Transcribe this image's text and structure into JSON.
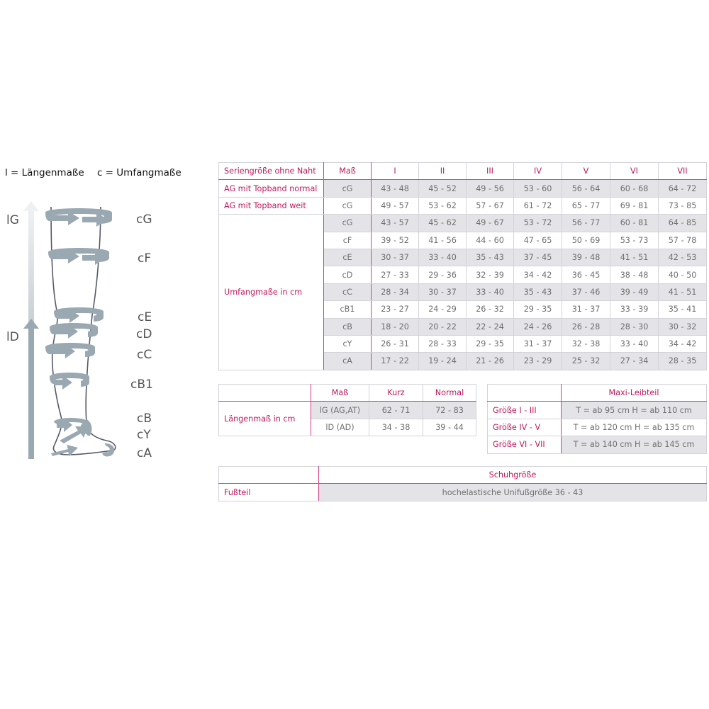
{
  "legend": {
    "length": "l = Längenmaße",
    "circumference": "c = Umfangmaße"
  },
  "diagram": {
    "length_labels": [
      "lG",
      "lD"
    ],
    "circ_labels": [
      "cG",
      "cF",
      "cE",
      "cD",
      "cC",
      "cB1",
      "cB",
      "cY",
      "cA"
    ]
  },
  "sizes_table": {
    "header": [
      "Seriengröße ohne Naht",
      "Maß",
      "I",
      "II",
      "III",
      "IV",
      "V",
      "VI",
      "VII"
    ],
    "ag_normal": {
      "label": "AG mit Topband normal",
      "measure": "cG",
      "values": [
        "43 - 48",
        "45 - 52",
        "49 - 56",
        "53 - 60",
        "56 - 64",
        "60 - 68",
        "64 - 72"
      ]
    },
    "ag_weit": {
      "label": "AG mit Topband weit",
      "measure": "cG",
      "values": [
        "49 - 57",
        "53 - 62",
        "57 - 67",
        "61 - 72",
        "65 - 77",
        "69 - 81",
        "73 - 85"
      ]
    },
    "umfang_label": "Umfangmaße in cm",
    "umfang_rows": [
      {
        "measure": "cG",
        "values": [
          "43 - 57",
          "45 - 62",
          "49 - 67",
          "53 - 72",
          "56 - 77",
          "60 - 81",
          "64 - 85"
        ]
      },
      {
        "measure": "cF",
        "values": [
          "39 - 52",
          "41 - 56",
          "44 - 60",
          "47 - 65",
          "50 - 69",
          "53 - 73",
          "57 - 78"
        ]
      },
      {
        "measure": "cE",
        "values": [
          "30 - 37",
          "33 - 40",
          "35 - 43",
          "37 - 45",
          "39 - 48",
          "41 - 51",
          "42 - 53"
        ]
      },
      {
        "measure": "cD",
        "values": [
          "27 - 33",
          "29 - 36",
          "32 - 39",
          "34 - 42",
          "36 - 45",
          "38 - 48",
          "40 - 50"
        ]
      },
      {
        "measure": "cC",
        "values": [
          "28 - 34",
          "30 - 37",
          "33 - 40",
          "35 - 43",
          "37 - 46",
          "39 - 49",
          "41 - 51"
        ]
      },
      {
        "measure": "cB1",
        "values": [
          "23 - 27",
          "24 - 29",
          "26 - 32",
          "29 - 35",
          "31 - 37",
          "33 - 39",
          "35 - 41"
        ]
      },
      {
        "measure": "cB",
        "values": [
          "18 - 20",
          "20 - 22",
          "22 - 24",
          "24 - 26",
          "26 - 28",
          "28 - 30",
          "30 - 32"
        ]
      },
      {
        "measure": "cY",
        "values": [
          "26 - 31",
          "28 - 33",
          "29 - 35",
          "31 - 37",
          "32 - 38",
          "33 - 40",
          "34 - 42"
        ]
      },
      {
        "measure": "cA",
        "values": [
          "17 - 22",
          "19 - 24",
          "21 - 26",
          "23 - 29",
          "25 - 32",
          "27 - 34",
          "28 - 35"
        ]
      }
    ]
  },
  "length_table": {
    "header": [
      "",
      "Maß",
      "Kurz",
      "Normal"
    ],
    "label": "Längenmaß in cm",
    "rows": [
      {
        "measure": "lG (AG,AT)",
        "values": [
          "62 - 71",
          "72 - 83"
        ]
      },
      {
        "measure": "lD (AD)",
        "values": [
          "34 - 38",
          "39 - 44"
        ]
      }
    ]
  },
  "maxi_table": {
    "header": [
      "",
      "Maxi-Leibteil"
    ],
    "rows": [
      {
        "label": "Größe I - III",
        "value": "T = ab 95 cm H = ab 110 cm"
      },
      {
        "label": "Größe IV - V",
        "value": "T = ab 120 cm H = ab 135 cm"
      },
      {
        "label": "Größe VI - VII",
        "value": "T = ab 140 cm H = ab 145 cm"
      }
    ]
  },
  "shoe_table": {
    "header": [
      "",
      "Schuhgröße"
    ],
    "label": "Fußteil",
    "value": "hochelastische Unifußgröße 36 - 43"
  },
  "colors": {
    "accent": "#c2185b",
    "shade": "#e4e4e8",
    "border": "#d3d3d9",
    "arrow": "#9aa8b2"
  }
}
